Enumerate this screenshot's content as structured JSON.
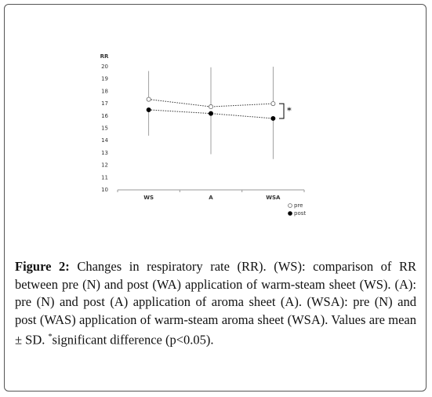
{
  "chart_data": {
    "type": "line",
    "y_label": "RR",
    "categories": [
      "WS",
      "A",
      "WSA"
    ],
    "series": [
      {
        "name": "pre",
        "color": "#666666",
        "marker": "open",
        "values": [
          17.35,
          16.75,
          17.0
        ],
        "error": [
          2.3,
          3.2,
          3.0
        ]
      },
      {
        "name": "post",
        "color": "#000000",
        "marker": "filled",
        "values": [
          16.5,
          16.2,
          15.8
        ],
        "error": [
          2.1,
          3.3,
          3.3
        ]
      }
    ],
    "ylim": [
      10,
      20
    ],
    "yticks": [
      10,
      11,
      12,
      13,
      14,
      15,
      16,
      17,
      18,
      19,
      20
    ],
    "annotation": "*",
    "grid": false
  },
  "caption": {
    "label": "Figure 2:",
    "text": "Changes in respiratory rate (RR). (WS): comparison of RR between pre (N) and post (WA) application of warm-steam sheet (WS). (A): pre (N) and post (A) application of aroma sheet (A). (WSA): pre (N) and post (WAS) application of warm-steam aroma sheet (WSA). Values are mean ± SD. ",
    "superscript": "*",
    "text_end": "significant difference (p<0.05)."
  }
}
